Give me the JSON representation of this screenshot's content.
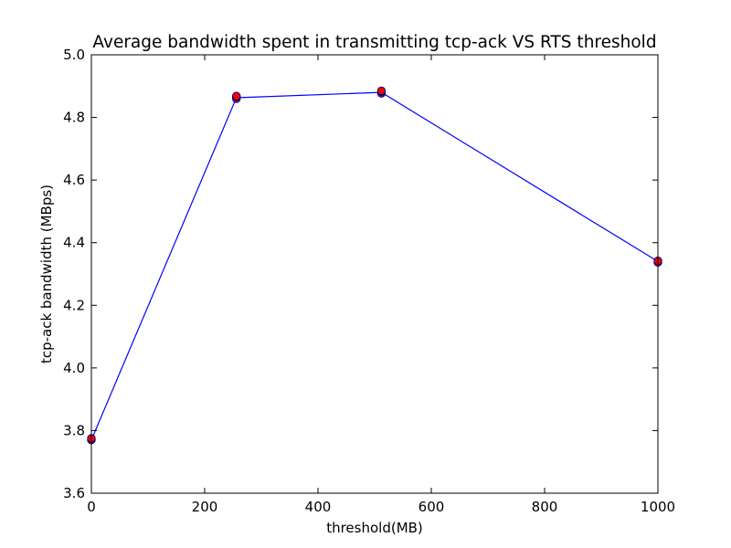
{
  "chart_data": {
    "type": "line",
    "title": "Average bandwidth spent in transmitting tcp-ack VS RTS threshold",
    "xlabel": "threshold(MB)",
    "ylabel": "tcp-ack bandwidth (MBps)",
    "xlim": [
      0,
      1000
    ],
    "ylim": [
      3.6,
      5.0
    ],
    "xticks": [
      "0",
      "200",
      "400",
      "600",
      "800",
      "1000"
    ],
    "yticks": [
      "3.6",
      "3.8",
      "4.0",
      "4.2",
      "4.4",
      "4.6",
      "4.8",
      "5.0"
    ],
    "grid": false,
    "legend": "none",
    "line": {
      "color": "#0000ff",
      "x": [
        0,
        256,
        512,
        1000
      ],
      "y": [
        3.77,
        4.863,
        4.88,
        4.34
      ]
    },
    "markers": {
      "color": "#ff0000",
      "edge_color": "#000080",
      "x": [
        0,
        0,
        256,
        256,
        256,
        512,
        512,
        512,
        1000,
        1000
      ],
      "y": [
        3.77,
        3.775,
        4.86,
        4.866,
        4.868,
        4.877,
        4.882,
        4.885,
        4.337,
        4.342
      ]
    }
  }
}
